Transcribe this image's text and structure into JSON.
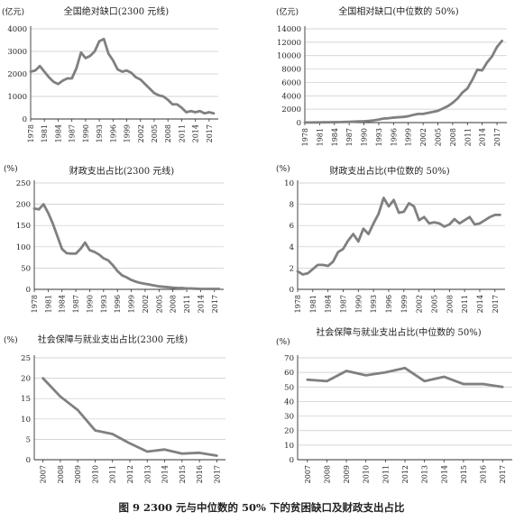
{
  "figure": {
    "caption": "图 9    2300 元与中位数的 50% 下的贫困缺口及财政支出占比"
  },
  "chart_data": [
    {
      "type": "line",
      "title": "全国绝对缺口(2300 元线)",
      "ylabel": "(亿元)",
      "ylim": [
        0,
        4000
      ],
      "y_ticks": [
        "0",
        "1000",
        "2000",
        "3000",
        "4000"
      ],
      "xlim": [
        1978,
        2019
      ],
      "x_ticks": [
        "1978",
        "1981",
        "1984",
        "1987",
        "1990",
        "1993",
        "1996",
        "1999",
        "2002",
        "2005",
        "2008",
        "2011",
        "2014",
        "2017"
      ],
      "grid": "horizontal",
      "x": [
        1978,
        1979,
        1980,
        1981,
        1982,
        1983,
        1984,
        1985,
        1986,
        1987,
        1988,
        1989,
        1990,
        1991,
        1992,
        1993,
        1994,
        1995,
        1996,
        1997,
        1998,
        1999,
        2000,
        2001,
        2002,
        2003,
        2004,
        2005,
        2006,
        2007,
        2008,
        2009,
        2010,
        2011,
        2012,
        2013,
        2014,
        2015,
        2016,
        2017,
        2018
      ],
      "values": [
        2100,
        2150,
        2350,
        2100,
        1850,
        1650,
        1550,
        1700,
        1800,
        1800,
        2250,
        2950,
        2700,
        2800,
        3000,
        3450,
        3550,
        2900,
        2600,
        2200,
        2100,
        2150,
        2050,
        1850,
        1750,
        1550,
        1350,
        1150,
        1050,
        1000,
        850,
        650,
        650,
        500,
        300,
        350,
        300,
        350,
        250,
        300,
        250
      ]
    },
    {
      "type": "line",
      "title": "全国相对缺口(中位数的 50%)",
      "ylabel": "(亿元)",
      "ylim": [
        0,
        14000
      ],
      "y_ticks": [
        "0",
        "2000",
        "4000",
        "6000",
        "8000",
        "10000",
        "12000",
        "14000"
      ],
      "xlim": [
        1978,
        2019
      ],
      "x_ticks": [
        "1978",
        "1981",
        "1984",
        "1987",
        "1990",
        "1993",
        "1996",
        "1999",
        "2002",
        "2005",
        "2008",
        "2011",
        "2014",
        "2017"
      ],
      "grid": "horizontal",
      "x": [
        1978,
        1979,
        1980,
        1981,
        1982,
        1983,
        1984,
        1985,
        1986,
        1987,
        1988,
        1989,
        1990,
        1991,
        1992,
        1993,
        1994,
        1995,
        1996,
        1997,
        1998,
        1999,
        2000,
        2001,
        2002,
        2003,
        2004,
        2005,
        2006,
        2007,
        2008,
        2009,
        2010,
        2011,
        2012,
        2013,
        2014,
        2015,
        2016,
        2017,
        2018
      ],
      "values": [
        20,
        20,
        25,
        30,
        40,
        50,
        60,
        70,
        90,
        110,
        140,
        180,
        200,
        250,
        330,
        450,
        600,
        650,
        750,
        800,
        850,
        950,
        1150,
        1300,
        1300,
        1450,
        1600,
        1750,
        2100,
        2450,
        2950,
        3600,
        4500,
        5100,
        6400,
        7900,
        7800,
        9000,
        9900,
        11300,
        12200
      ]
    },
    {
      "type": "line",
      "title": "财政支出占比(2300 元线)",
      "ylabel": "(%)",
      "ylim": [
        0,
        250
      ],
      "y_ticks": [
        "0",
        "50",
        "100",
        "150",
        "200",
        "250"
      ],
      "xlim": [
        1978,
        2019
      ],
      "x_ticks": [
        "1978",
        "1981",
        "1984",
        "1987",
        "1990",
        "1993",
        "1996",
        "1999",
        "2002",
        "2005",
        "2008",
        "2011",
        "2014",
        "2017"
      ],
      "grid": "horizontal",
      "x": [
        1978,
        1979,
        1980,
        1981,
        1982,
        1983,
        1984,
        1985,
        1986,
        1987,
        1988,
        1989,
        1990,
        1991,
        1992,
        1993,
        1994,
        1995,
        1996,
        1997,
        1998,
        1999,
        2000,
        2001,
        2002,
        2003,
        2004,
        2005,
        2006,
        2007,
        2008,
        2009,
        2010,
        2011,
        2012,
        2013,
        2014,
        2015,
        2016,
        2017,
        2018
      ],
      "values": [
        190,
        188,
        200,
        180,
        155,
        125,
        95,
        85,
        84,
        84,
        95,
        110,
        92,
        88,
        82,
        73,
        68,
        57,
        43,
        33,
        28,
        22,
        18,
        15,
        13,
        11,
        9,
        7,
        6,
        5,
        4,
        3,
        3,
        2,
        2,
        1.5,
        1,
        1,
        1,
        1,
        1
      ]
    },
    {
      "type": "line",
      "title": "财政支出占比(中位数的 50%)",
      "ylabel": "(%)",
      "ylim": [
        0,
        10
      ],
      "y_ticks": [
        "0",
        "2",
        "4",
        "6",
        "8",
        "10"
      ],
      "xlim": [
        1978,
        2019
      ],
      "x_ticks": [
        "1978",
        "1981",
        "1984",
        "1987",
        "1990",
        "1993",
        "1996",
        "1999",
        "2002",
        "2005",
        "2008",
        "2011",
        "2014",
        "2017"
      ],
      "grid": "horizontal",
      "x": [
        1978,
        1979,
        1980,
        1981,
        1982,
        1983,
        1984,
        1985,
        1986,
        1987,
        1988,
        1989,
        1990,
        1991,
        1992,
        1993,
        1994,
        1995,
        1996,
        1997,
        1998,
        1999,
        2000,
        2001,
        2002,
        2003,
        2004,
        2005,
        2006,
        2007,
        2008,
        2009,
        2010,
        2011,
        2012,
        2013,
        2014,
        2015,
        2016,
        2017,
        2018
      ],
      "values": [
        1.7,
        1.4,
        1.5,
        1.9,
        2.3,
        2.3,
        2.2,
        2.6,
        3.5,
        3.8,
        4.6,
        5.2,
        4.5,
        5.7,
        5.2,
        6.2,
        7.1,
        8.6,
        7.8,
        8.4,
        7.2,
        7.3,
        8.1,
        7.8,
        6.5,
        6.8,
        6.2,
        6.3,
        6.2,
        5.9,
        6.1,
        6.6,
        6.2,
        6.5,
        6.8,
        6.1,
        6.2,
        6.5,
        6.8,
        7.0,
        7.0
      ]
    },
    {
      "type": "line",
      "title": "社会保障与就业支出占比(2300 元线)",
      "ylabel": "(%)",
      "ylim": [
        0,
        25
      ],
      "y_ticks": [
        "0",
        "5",
        "10",
        "15",
        "20",
        "25"
      ],
      "xlim": [
        2006.5,
        2017.5
      ],
      "x_ticks": [
        "2007",
        "2008",
        "2009",
        "2010",
        "2011",
        "2012",
        "2013",
        "2014",
        "2015",
        "2016",
        "2017"
      ],
      "grid": "horizontal",
      "x": [
        2007,
        2008,
        2009,
        2010,
        2011,
        2012,
        2013,
        2014,
        2015,
        2016,
        2017
      ],
      "values": [
        20.0,
        15.5,
        12.2,
        7.2,
        6.3,
        4.0,
        2.0,
        2.5,
        1.5,
        1.7,
        1.0
      ]
    },
    {
      "type": "line",
      "title": "社会保障与就业支出占比(中位数的 50%)",
      "ylabel": "(%)",
      "ylim": [
        0,
        70
      ],
      "y_ticks": [
        "0",
        "10",
        "20",
        "30",
        "40",
        "50",
        "60",
        "70"
      ],
      "xlim": [
        2006.5,
        2017.5
      ],
      "x_ticks": [
        "2007",
        "2008",
        "2009",
        "2010",
        "2011",
        "2012",
        "2013",
        "2014",
        "2015",
        "2016",
        "2017"
      ],
      "grid": "horizontal",
      "x": [
        2007,
        2008,
        2009,
        2010,
        2011,
        2012,
        2013,
        2014,
        2015,
        2016,
        2017
      ],
      "values": [
        55,
        54,
        61,
        58,
        60,
        63,
        54,
        57,
        52,
        52,
        50
      ]
    }
  ]
}
